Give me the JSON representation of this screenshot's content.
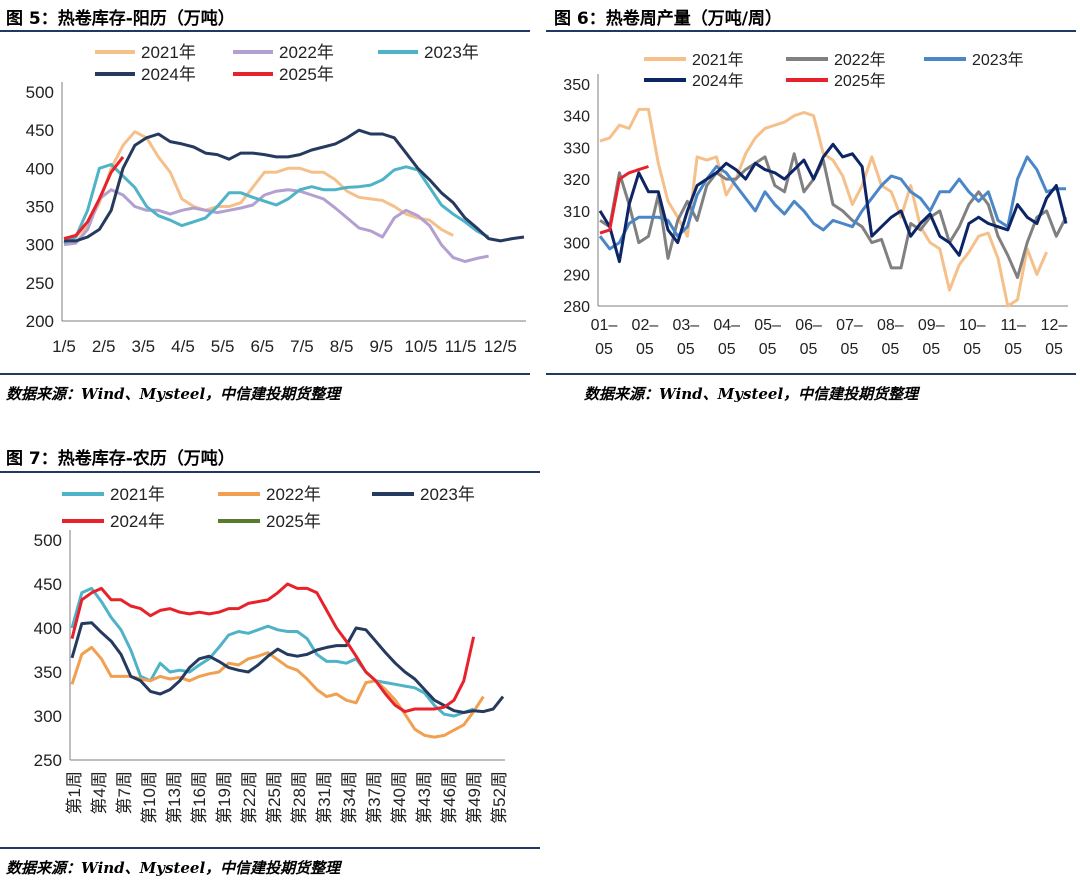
{
  "charts": [
    {
      "title": "图 5：热卷库存-阳历（万吨）",
      "source": "数据来源：Wind、Mysteel，中信建投期货整理",
      "chart_data": {
        "type": "line",
        "x_ticks": [
          "1/5",
          "2/5",
          "3/5",
          "4/5",
          "5/5",
          "6/5",
          "7/5",
          "8/5",
          "9/5",
          "10/5",
          "11/5",
          "12/5"
        ],
        "ylim": [
          200,
          500
        ],
        "y_ticks": [
          200,
          250,
          300,
          350,
          400,
          450,
          500
        ],
        "grid": false,
        "legend": "top",
        "series": [
          {
            "name": "2021年",
            "color": "#f5c08a",
            "values": [
              305,
              310,
              325,
              355,
              400,
              430,
              448,
              440,
              415,
              395,
              360,
              350,
              345,
              350,
              350,
              355,
              375,
              395,
              395,
              400,
              400,
              395,
              395,
              385,
              370,
              362,
              360,
              358,
              350,
              340,
              335,
              332,
              320,
              312
            ]
          },
          {
            "name": "2022年",
            "color": "#b39fd0",
            "values": [
              300,
              302,
              320,
              360,
              372,
              365,
              350,
              345,
              345,
              340,
              345,
              348,
              345,
              342,
              345,
              348,
              352,
              365,
              370,
              372,
              370,
              365,
              360,
              348,
              335,
              322,
              318,
              310,
              335,
              345,
              338,
              325,
              300,
              283,
              278,
              282,
              285
            ]
          },
          {
            "name": "2023年",
            "color": "#4fb3c8",
            "values": [
              302,
              310,
              345,
              400,
              405,
              390,
              375,
              350,
              338,
              332,
              325,
              330,
              335,
              350,
              368,
              368,
              362,
              357,
              352,
              360,
              372,
              376,
              372,
              372,
              375,
              376,
              378,
              385,
              398,
              402,
              398,
              375,
              352,
              340,
              330,
              318,
              310
            ]
          },
          {
            "name": "2024年",
            "color": "#253a5e",
            "values": [
              305,
              305,
              310,
              320,
              345,
              400,
              430,
              440,
              445,
              435,
              432,
              428,
              420,
              418,
              412,
              420,
              420,
              418,
              415,
              415,
              418,
              424,
              428,
              432,
              440,
              450,
              445,
              445,
              440,
              420,
              400,
              385,
              368,
              355,
              335,
              322,
              308,
              305,
              308,
              310
            ]
          },
          {
            "name": "2025年",
            "color": "#e8222b",
            "values": [
              308,
              312,
              330,
              360,
              395,
              415
            ]
          }
        ]
      }
    },
    {
      "title": "图 6：热卷周产量（万吨/周）",
      "source": "数据来源：Wind、Mysteel，中信建投期货整理",
      "chart_data": {
        "type": "line",
        "x_ticks": [
          "01–\n05",
          "02–\n05",
          "03–\n05",
          "04–\n05",
          "05–\n05",
          "06–\n05",
          "07–\n05",
          "08–\n05",
          "09–\n05",
          "10–\n05",
          "11–\n05",
          "12–\n05"
        ],
        "ylim": [
          280,
          350
        ],
        "y_ticks": [
          280,
          290,
          300,
          310,
          320,
          330,
          340,
          350
        ],
        "grid": false,
        "legend": "top",
        "series": [
          {
            "name": "2021年",
            "color": "#f5c08a",
            "values": [
              332,
              333,
              337,
              336,
              342,
              342,
              325,
              313,
              308,
              302,
              327,
              326,
              327,
              315,
              320,
              328,
              333,
              336,
              337,
              338,
              340,
              341,
              340,
              328,
              326,
              321,
              312,
              318,
              327,
              318,
              316,
              308,
              318,
              305,
              300,
              298,
              285,
              293,
              297,
              302,
              303,
              295,
              280,
              282,
              298,
              290,
              297
            ]
          },
          {
            "name": "2022年",
            "color": "#808080",
            "values": [
              307,
              305,
              322,
              312,
              300,
              302,
              315,
              295,
              307,
              313,
              307,
              318,
              322,
              320,
              320,
              323,
              325,
              327,
              318,
              316,
              328,
              316,
              320,
              326,
              312,
              310,
              307,
              305,
              300,
              301,
              292,
              292,
              306,
              304,
              308,
              310,
              300,
              305,
              312,
              316,
              312,
              302,
              296,
              289,
              300,
              308,
              310,
              302,
              308
            ]
          },
          {
            "name": "2023年",
            "color": "#4a86c8",
            "values": [
              302,
              298,
              300,
              306,
              308,
              308,
              308,
              307,
              302,
              305,
              315,
              320,
              324,
              322,
              318,
              314,
              310,
              316,
              312,
              309,
              313,
              310,
              306,
              304,
              307,
              306,
              305,
              310,
              314,
              318,
              321,
              320,
              316,
              314,
              310,
              316,
              316,
              320,
              316,
              313,
              316,
              307,
              305,
              320,
              327,
              323,
              316,
              317,
              317
            ]
          },
          {
            "name": "2024年",
            "color": "#0d2566",
            "values": [
              310,
              305,
              294,
              312,
              322,
              316,
              316,
              304,
              300,
              310,
              318,
              320,
              322,
              325,
              323,
              320,
              325,
              323,
              322,
              320,
              323,
              326,
              320,
              327,
              331,
              327,
              328,
              324,
              302,
              305,
              308,
              310,
              302,
              306,
              309,
              302,
              300,
              296,
              306,
              308,
              306,
              305,
              304,
              312,
              308,
              306,
              314,
              318,
              306
            ]
          },
          {
            "name": "2025年",
            "color": "#e8222b",
            "values": [
              303,
              304,
              320,
              322,
              323,
              324
            ]
          }
        ]
      }
    },
    {
      "title": "图 7：热卷库存-农历（万吨）",
      "source": "数据来源：Wind、Mysteel，中信建投期货整理",
      "chart_data": {
        "type": "line",
        "x_ticks": [
          "第1周",
          "第4周",
          "第7周",
          "第10周",
          "第13周",
          "第16周",
          "第19周",
          "第22周",
          "第25周",
          "第28周",
          "第31周",
          "第34周",
          "第37周",
          "第40周",
          "第43周",
          "第46周",
          "第49周",
          "第52周"
        ],
        "ylim": [
          250,
          500
        ],
        "y_ticks": [
          250,
          300,
          350,
          400,
          450,
          500
        ],
        "grid": false,
        "legend": "top",
        "series": [
          {
            "name": "2021年",
            "color": "#4fb3c8",
            "values": [
              400,
              440,
              445,
              430,
              412,
              398,
              375,
              345,
              340,
              360,
              350,
              352,
              350,
              358,
              365,
              378,
              392,
              396,
              394,
              398,
              402,
              398,
              396,
              396,
              388,
              370,
              362,
              362,
              360,
              365,
              350,
              340,
              338,
              336,
              334,
              332,
              326,
              312,
              302,
              300,
              304,
              308
            ]
          },
          {
            "name": "2022年",
            "color": "#f0a050",
            "values": [
              336,
              370,
              378,
              365,
              345,
              345,
              345,
              342,
              340,
              345,
              342,
              344,
              340,
              345,
              348,
              350,
              360,
              358,
              365,
              368,
              372,
              364,
              356,
              352,
              342,
              330,
              322,
              325,
              318,
              315,
              338,
              340,
              330,
              318,
              302,
              285,
              278,
              276,
              278,
              284,
              290,
              305,
              322
            ]
          },
          {
            "name": "2023年",
            "color": "#253a5e",
            "values": [
              366,
              405,
              406,
              395,
              385,
              370,
              345,
              340,
              328,
              325,
              330,
              340,
              355,
              365,
              368,
              362,
              355,
              352,
              350,
              358,
              368,
              376,
              370,
              368,
              370,
              375,
              378,
              380,
              380,
              400,
              398,
              385,
              372,
              360,
              350,
              342,
              330,
              318,
              312,
              306,
              304,
              306,
              305,
              308,
              322
            ]
          },
          {
            "name": "2024年",
            "color": "#e8222b",
            "values": [
              388,
              432,
              440,
              445,
              432,
              432,
              425,
              422,
              414,
              420,
              422,
              418,
              416,
              418,
              416,
              418,
              422,
              422,
              428,
              430,
              432,
              440,
              450,
              445,
              445,
              440,
              420,
              400,
              385,
              368,
              350,
              340,
              325,
              312,
              305,
              308,
              308,
              308,
              310,
              318,
              340,
              390
            ]
          },
          {
            "name": "2025年",
            "color": "#5a7a2e",
            "values": []
          }
        ]
      }
    }
  ]
}
